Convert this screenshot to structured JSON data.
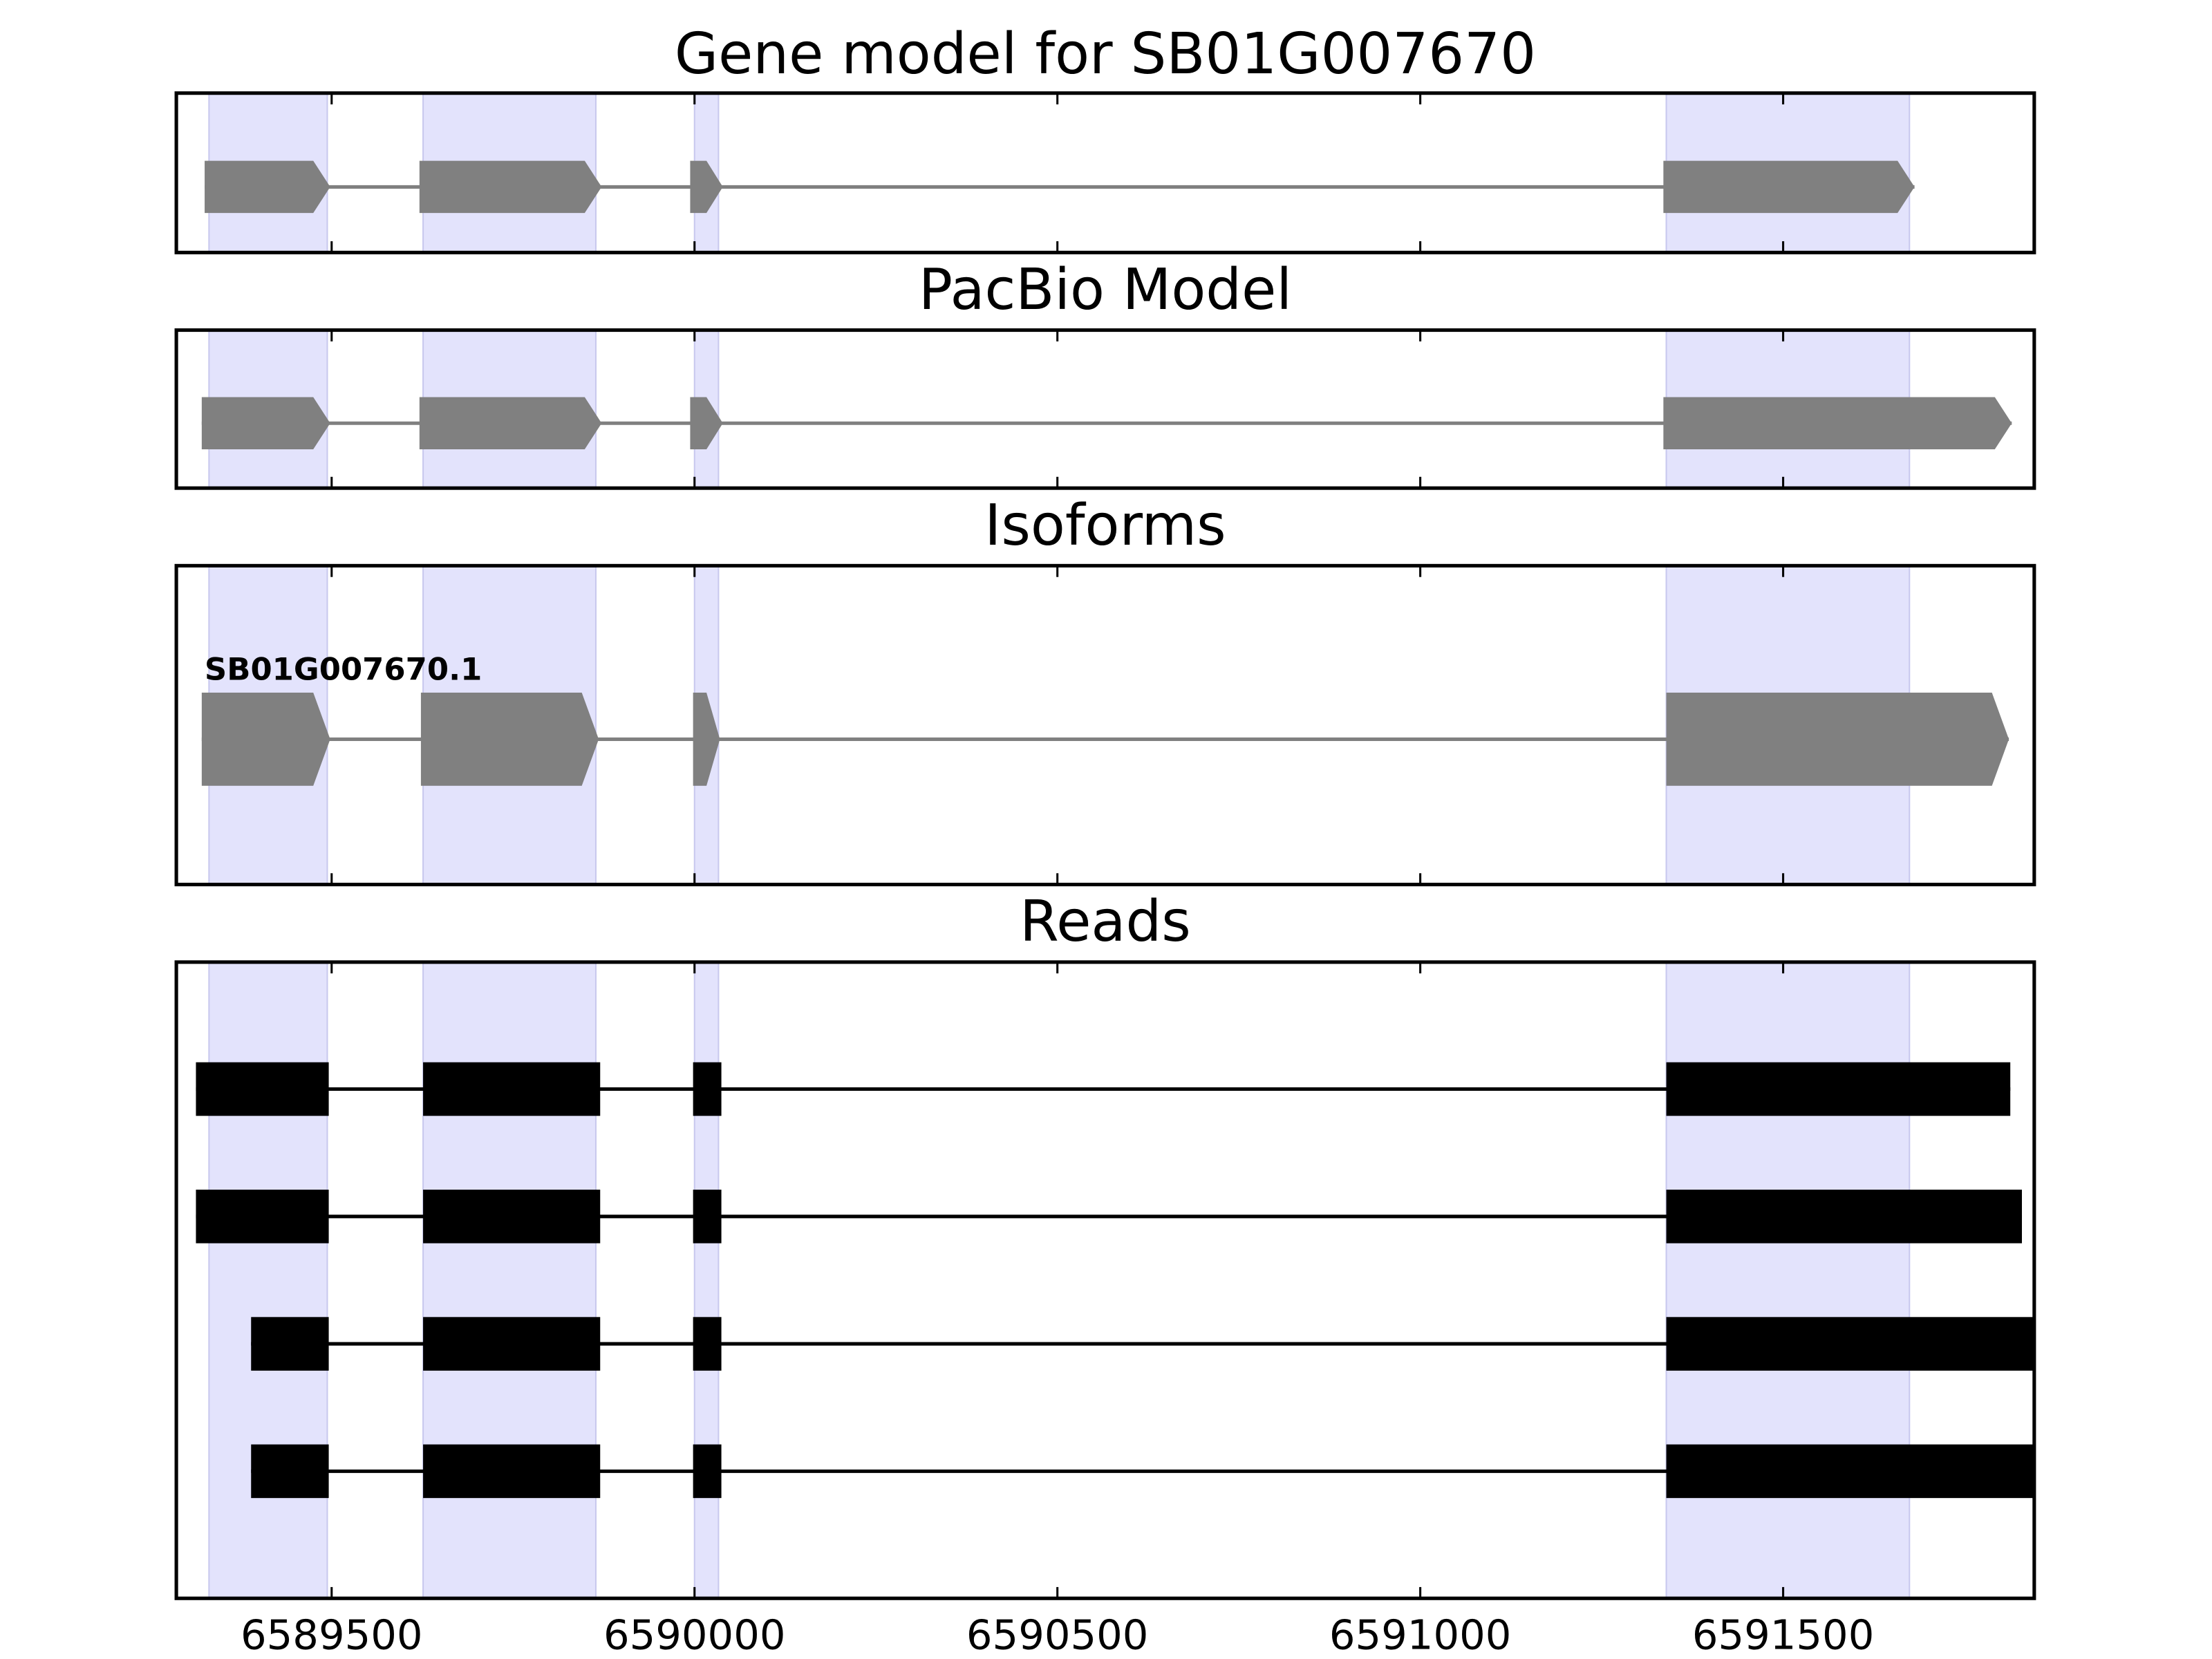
{
  "chart_data": [
    {
      "type": "gene_track",
      "title": "Gene model for SB01G007670",
      "xlim": [
        6589286,
        6591846
      ],
      "color": "#808080",
      "highlight_color": "#e3e3fc",
      "highlights": [
        [
          6589331,
          6589494
        ],
        [
          6589626,
          6589864
        ],
        [
          6590000,
          6590033
        ],
        [
          6591339,
          6591674
        ]
      ],
      "features": [
        {
          "exons": [
            [
              6589325,
              6589498
            ],
            [
              6589621,
              6589872
            ],
            [
              6589994,
              6590039
            ],
            [
              6591335,
              6591681
            ]
          ]
        }
      ]
    },
    {
      "type": "gene_track",
      "title": "PacBio Model",
      "xlim": [
        6589286,
        6591846
      ],
      "color": "#808080",
      "highlight_color": "#e3e3fc",
      "highlights": [
        [
          6589331,
          6589494
        ],
        [
          6589626,
          6589864
        ],
        [
          6590000,
          6590033
        ],
        [
          6591339,
          6591674
        ]
      ],
      "features": [
        {
          "exons": [
            [
              6589321,
              6589498
            ],
            [
              6589621,
              6589872
            ],
            [
              6589994,
              6590039
            ],
            [
              6591335,
              6591815
            ]
          ]
        }
      ]
    },
    {
      "type": "gene_track",
      "title": "Isoforms",
      "xlim": [
        6589286,
        6591846
      ],
      "color": "#808080",
      "highlight_color": "#e3e3fc",
      "highlights": [
        [
          6589331,
          6589494
        ],
        [
          6589626,
          6589864
        ],
        [
          6590000,
          6590033
        ],
        [
          6591339,
          6591674
        ]
      ],
      "features": [
        {
          "name": "SB01G007670.1",
          "exons": [
            [
              6589321,
              6589498
            ],
            [
              6589623,
              6589868
            ],
            [
              6589998,
              6590035
            ],
            [
              6591339,
              6591811
            ]
          ]
        }
      ]
    },
    {
      "type": "reads",
      "title": "Reads",
      "xlim": [
        6589286,
        6591846
      ],
      "color": "#000000",
      "highlight_color": "#e3e3fc",
      "highlights": [
        [
          6589331,
          6589494
        ],
        [
          6589626,
          6589864
        ],
        [
          6590000,
          6590033
        ],
        [
          6591339,
          6591674
        ]
      ],
      "xticks": [
        6589500,
        6590000,
        6590500,
        6591000,
        6591500
      ],
      "features": [
        {
          "exons": [
            [
              6589313,
              6589496
            ],
            [
              6589626,
              6589870
            ],
            [
              6589998,
              6590037
            ],
            [
              6591339,
              6591813
            ]
          ]
        },
        {
          "exons": [
            [
              6589313,
              6589496
            ],
            [
              6589626,
              6589870
            ],
            [
              6589998,
              6590037
            ],
            [
              6591339,
              6591829
            ]
          ]
        },
        {
          "exons": [
            [
              6589389,
              6589496
            ],
            [
              6589626,
              6589870
            ],
            [
              6589998,
              6590037
            ],
            [
              6591339,
              6591848
            ]
          ]
        },
        {
          "exons": [
            [
              6589389,
              6589496
            ],
            [
              6589626,
              6589870
            ],
            [
              6589998,
              6590037
            ],
            [
              6591339,
              6591848
            ]
          ]
        }
      ]
    }
  ]
}
